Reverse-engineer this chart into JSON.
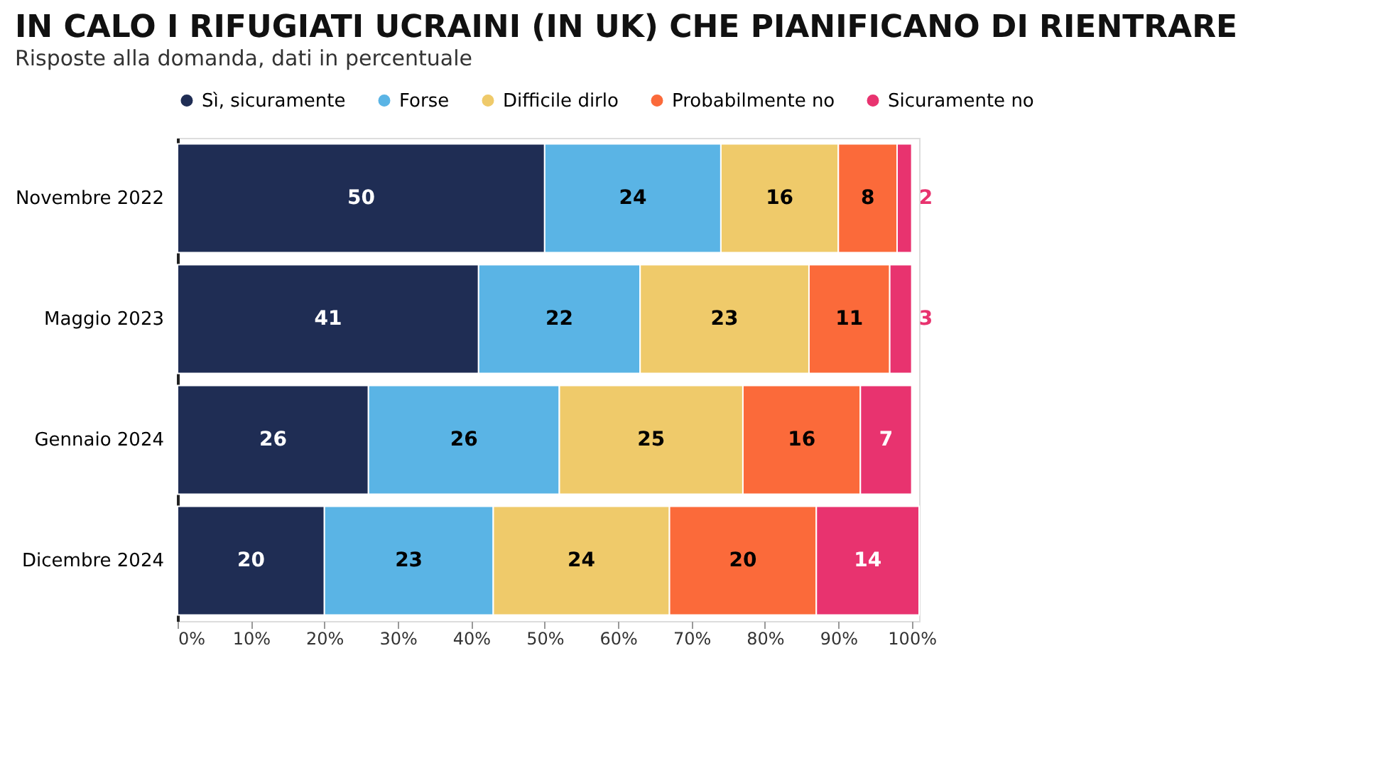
{
  "chart_data": {
    "type": "bar",
    "orientation": "horizontal",
    "stacked": true,
    "title": "IN CALO I RIFUGIATI UCRAINI (IN UK) CHE PIANIFICANO DI RIENTRARE",
    "subtitle": "Risposte alla domanda, dati in percentuale",
    "categories": [
      "Novembre 2022",
      "Maggio 2023",
      "Gennaio 2024",
      "Dicembre 2024"
    ],
    "series": [
      {
        "name": "Sì, sicuramente",
        "color": "#1f2d54",
        "values": [
          50,
          41,
          26,
          20
        ]
      },
      {
        "name": "Forse",
        "color": "#5ab4e5",
        "values": [
          24,
          22,
          26,
          23
        ]
      },
      {
        "name": "Difficile dirlo",
        "color": "#efca6a",
        "values": [
          16,
          23,
          25,
          24
        ]
      },
      {
        "name": "Probabilmente no",
        "color": "#fb6a3a",
        "values": [
          8,
          11,
          16,
          20
        ]
      },
      {
        "name": "Sicuramente no",
        "color": "#e8336f",
        "values": [
          2,
          3,
          7,
          14
        ]
      }
    ],
    "xlim": [
      0,
      101
    ],
    "xticks": [
      {
        "value": 0,
        "label": "0%"
      },
      {
        "value": 10,
        "label": "10%"
      },
      {
        "value": 20,
        "label": "20%"
      },
      {
        "value": 30,
        "label": "30%"
      },
      {
        "value": 40,
        "label": "40%"
      },
      {
        "value": 50,
        "label": "50%"
      },
      {
        "value": 60,
        "label": "60%"
      },
      {
        "value": 70,
        "label": "70%"
      },
      {
        "value": 80,
        "label": "80%"
      },
      {
        "value": 90,
        "label": "90%"
      },
      {
        "value": 100,
        "label": "100%"
      }
    ],
    "data_labels": true,
    "legend": "top",
    "grid": false
  }
}
